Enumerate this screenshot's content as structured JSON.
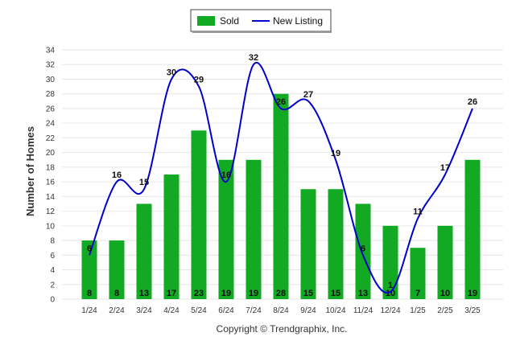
{
  "legend": {
    "sold_label": "Sold",
    "listing_label": "New Listing"
  },
  "footer": {
    "copyright": "Copyright © Trendgraphix, Inc."
  },
  "colors": {
    "sold": "#11AA22",
    "listing": "#0000CC",
    "grid": "#e6e6e6"
  },
  "chart_data": {
    "type": "bar",
    "title": "",
    "xlabel": "",
    "ylabel": "Number of Homes",
    "ylim": [
      0,
      34
    ],
    "yticks": [
      0,
      2,
      4,
      6,
      8,
      10,
      12,
      14,
      16,
      18,
      20,
      22,
      24,
      26,
      28,
      30,
      32,
      34
    ],
    "grid": true,
    "legend_position": "top-center",
    "categories": [
      "1/24",
      "2/24",
      "3/24",
      "4/24",
      "5/24",
      "6/24",
      "7/24",
      "8/24",
      "9/24",
      "10/24",
      "11/24",
      "12/24",
      "1/25",
      "2/25",
      "3/25"
    ],
    "series": [
      {
        "name": "Sold",
        "type": "bar",
        "values": [
          8,
          8,
          13,
          17,
          23,
          19,
          19,
          28,
          15,
          15,
          13,
          10,
          7,
          10,
          19
        ]
      },
      {
        "name": "New Listing",
        "type": "line",
        "values": [
          6,
          16,
          15,
          30,
          29,
          16,
          32,
          26,
          27,
          19,
          6,
          1,
          11,
          17,
          26
        ]
      }
    ]
  }
}
